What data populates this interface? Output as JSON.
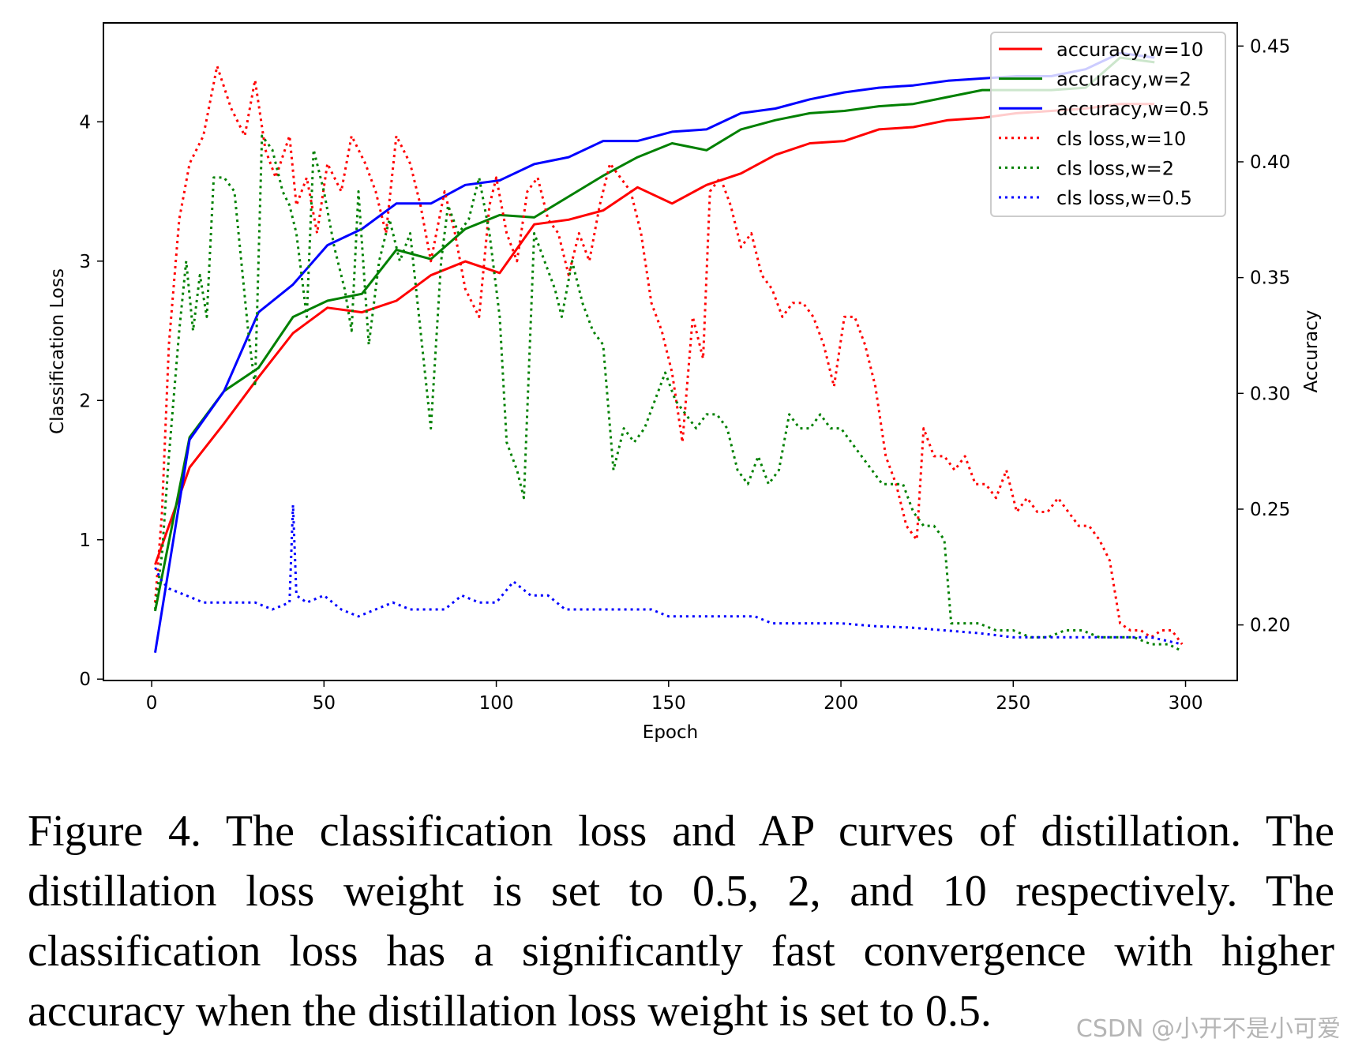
{
  "chart_data": {
    "type": "line",
    "xlabel": "Epoch",
    "ylabel_left": "Classification Loss",
    "ylabel_right": "Accuracy",
    "xlim": [
      -14,
      315
    ],
    "ylim_left": [
      -0.01,
      4.71
    ],
    "ylim_right": [
      0.176,
      0.46
    ],
    "x_ticks": [
      0,
      50,
      100,
      150,
      200,
      250,
      300
    ],
    "y_left_ticks": [
      0,
      1,
      2,
      3,
      4
    ],
    "y_right_ticks": [
      "0.20",
      "0.25",
      "0.30",
      "0.35",
      "0.40",
      "0.45"
    ],
    "grid": false,
    "legend_position": "top-right",
    "colors": {
      "w10": "#ff0000",
      "w2": "#008000",
      "w0.5": "#0000ff"
    },
    "accuracy_x": [
      1,
      11,
      21,
      31,
      41,
      51,
      61,
      71,
      81,
      91,
      101,
      111,
      121,
      131,
      141,
      151,
      161,
      171,
      181,
      191,
      201,
      211,
      221,
      231,
      241,
      251,
      261,
      271,
      281,
      291
    ],
    "series": [
      {
        "name": "accuracy,w=10",
        "axis": "right",
        "style": "solid",
        "color": "#ff0000",
        "values": [
          0.226,
          0.268,
          0.287,
          0.307,
          0.326,
          0.337,
          0.335,
          0.34,
          0.351,
          0.357,
          0.352,
          0.373,
          0.375,
          0.379,
          0.389,
          0.382,
          0.39,
          0.395,
          0.403,
          0.408,
          0.409,
          0.414,
          0.415,
          0.418,
          0.419,
          0.421,
          0.422,
          0.423,
          0.425,
          0.425
        ]
      },
      {
        "name": "accuracy,w=2",
        "axis": "right",
        "style": "solid",
        "color": "#008000",
        "values": [
          0.206,
          0.281,
          0.301,
          0.311,
          0.333,
          0.34,
          0.343,
          0.362,
          0.358,
          0.371,
          0.377,
          0.376,
          0.385,
          0.394,
          0.402,
          0.408,
          0.405,
          0.414,
          0.418,
          0.421,
          0.422,
          0.424,
          0.425,
          0.428,
          0.431,
          0.431,
          0.431,
          0.432,
          0.445,
          0.443
        ]
      },
      {
        "name": "accuracy,w=0.5",
        "axis": "right",
        "style": "solid",
        "color": "#0000ff",
        "values": [
          0.188,
          0.28,
          0.301,
          0.335,
          0.347,
          0.364,
          0.371,
          0.382,
          0.382,
          0.39,
          0.392,
          0.399,
          0.402,
          0.409,
          0.409,
          0.413,
          0.414,
          0.421,
          0.423,
          0.427,
          0.43,
          0.432,
          0.433,
          0.435,
          0.436,
          0.437,
          0.437,
          0.44,
          0.447,
          0.445
        ]
      },
      {
        "name": "cls loss,w=10",
        "axis": "left",
        "style": "dotted",
        "color": "#ff0000",
        "x": [
          1,
          3,
          5,
          8,
          11,
          15,
          19,
          23,
          27,
          30,
          33,
          36,
          40,
          42,
          45,
          48,
          51,
          55,
          58,
          62,
          65,
          68,
          71,
          75,
          78,
          81,
          85,
          88,
          91,
          95,
          98,
          100,
          103,
          106,
          109,
          112,
          115,
          118,
          121,
          124,
          127,
          130,
          133,
          136,
          139,
          142,
          145,
          148,
          151,
          154,
          157,
          160,
          162,
          165,
          168,
          171,
          174,
          177,
          180,
          183,
          186,
          189,
          192,
          195,
          198,
          201,
          204,
          207,
          210,
          213,
          216,
          219,
          222,
          224,
          227,
          230,
          233,
          236,
          239,
          242,
          245,
          248,
          251,
          254,
          257,
          260,
          263,
          266,
          269,
          272,
          275,
          278,
          281,
          284,
          287,
          290,
          293,
          296,
          299
        ],
        "values": [
          0.55,
          1.2,
          2.4,
          3.3,
          3.7,
          3.9,
          4.4,
          4.1,
          3.9,
          4.3,
          3.8,
          3.6,
          3.9,
          3.4,
          3.6,
          3.2,
          3.7,
          3.5,
          3.9,
          3.7,
          3.5,
          3.2,
          3.9,
          3.7,
          3.4,
          3.0,
          3.5,
          3.2,
          2.8,
          2.6,
          3.4,
          3.6,
          3.2,
          3.0,
          3.5,
          3.6,
          3.3,
          3.2,
          2.9,
          3.2,
          3.0,
          3.4,
          3.7,
          3.6,
          3.5,
          3.2,
          2.7,
          2.5,
          2.2,
          1.7,
          2.6,
          2.3,
          3.5,
          3.6,
          3.4,
          3.1,
          3.2,
          2.9,
          2.8,
          2.6,
          2.7,
          2.7,
          2.6,
          2.4,
          2.1,
          2.6,
          2.6,
          2.4,
          2.1,
          1.6,
          1.4,
          1.1,
          1.0,
          1.8,
          1.6,
          1.6,
          1.5,
          1.6,
          1.4,
          1.4,
          1.3,
          1.5,
          1.2,
          1.3,
          1.2,
          1.2,
          1.3,
          1.2,
          1.1,
          1.1,
          1.0,
          0.85,
          0.4,
          0.35,
          0.35,
          0.3,
          0.35,
          0.35,
          0.25
        ]
      },
      {
        "name": "cls loss,w=2",
        "axis": "left",
        "style": "dotted",
        "color": "#008000",
        "x": [
          1,
          3,
          5,
          8,
          10,
          12,
          14,
          16,
          18,
          21,
          24,
          26,
          28,
          30,
          32,
          35,
          38,
          40,
          42,
          45,
          47,
          50,
          53,
          56,
          58,
          60,
          63,
          66,
          69,
          72,
          75,
          78,
          81,
          84,
          86,
          89,
          92,
          95,
          98,
          101,
          103,
          106,
          108,
          111,
          114,
          117,
          119,
          122,
          125,
          128,
          131,
          134,
          137,
          140,
          143,
          146,
          149,
          152,
          155,
          158,
          161,
          164,
          167,
          170,
          173,
          176,
          179,
          182,
          185,
          188,
          191,
          194,
          197,
          200,
          203,
          206,
          209,
          212,
          215,
          218,
          221,
          224,
          227,
          230,
          232,
          236,
          240,
          245,
          250,
          255,
          260,
          265,
          270,
          275,
          280,
          285,
          290,
          295,
          299
        ],
        "values": [
          0.5,
          0.9,
          1.6,
          2.5,
          3.0,
          2.5,
          2.9,
          2.6,
          3.6,
          3.6,
          3.5,
          3.0,
          2.5,
          2.1,
          3.9,
          3.8,
          3.5,
          3.4,
          3.2,
          2.6,
          3.8,
          3.5,
          3.1,
          2.8,
          2.5,
          3.5,
          2.4,
          3.0,
          3.3,
          3.0,
          3.2,
          2.5,
          1.8,
          3.0,
          3.4,
          3.2,
          3.3,
          3.6,
          3.2,
          2.6,
          1.7,
          1.5,
          1.3,
          3.2,
          3.0,
          2.8,
          2.6,
          3.0,
          2.7,
          2.5,
          2.4,
          1.5,
          1.8,
          1.7,
          1.8,
          2.0,
          2.2,
          2.0,
          1.9,
          1.8,
          1.9,
          1.9,
          1.8,
          1.5,
          1.4,
          1.6,
          1.4,
          1.5,
          1.9,
          1.8,
          1.8,
          1.9,
          1.8,
          1.8,
          1.7,
          1.6,
          1.5,
          1.4,
          1.4,
          1.4,
          1.2,
          1.1,
          1.1,
          1.0,
          0.4,
          0.4,
          0.4,
          0.35,
          0.35,
          0.3,
          0.3,
          0.35,
          0.35,
          0.3,
          0.3,
          0.3,
          0.25,
          0.25,
          0.2
        ]
      },
      {
        "name": "cls loss,w=0.5",
        "axis": "left",
        "style": "dotted",
        "color": "#0000ff",
        "x": [
          1,
          3,
          5,
          10,
          15,
          20,
          25,
          30,
          35,
          40,
          41,
          42,
          45,
          50,
          55,
          60,
          65,
          70,
          75,
          80,
          85,
          90,
          95,
          100,
          105,
          110,
          115,
          120,
          125,
          130,
          135,
          140,
          145,
          150,
          155,
          160,
          165,
          170,
          175,
          180,
          190,
          200,
          210,
          220,
          230,
          240,
          250,
          260,
          270,
          280,
          290,
          299
        ],
        "values": [
          0.8,
          0.7,
          0.65,
          0.6,
          0.55,
          0.55,
          0.55,
          0.55,
          0.5,
          0.55,
          1.25,
          0.6,
          0.55,
          0.6,
          0.5,
          0.45,
          0.5,
          0.55,
          0.5,
          0.5,
          0.5,
          0.6,
          0.55,
          0.55,
          0.7,
          0.6,
          0.6,
          0.5,
          0.5,
          0.5,
          0.5,
          0.5,
          0.5,
          0.45,
          0.45,
          0.45,
          0.45,
          0.45,
          0.45,
          0.4,
          0.4,
          0.4,
          0.38,
          0.37,
          0.35,
          0.33,
          0.3,
          0.3,
          0.3,
          0.3,
          0.3,
          0.25
        ]
      }
    ]
  },
  "caption": "Figure 4. The classification loss and AP curves of distillation. The distillation loss weight is set to 0.5, 2, and 10 respectively.  The classification loss has a significantly fast convergence with higher accuracy when the distillation loss weight is set to 0.5.",
  "watermark": "CSDN @小开不是小可爱"
}
